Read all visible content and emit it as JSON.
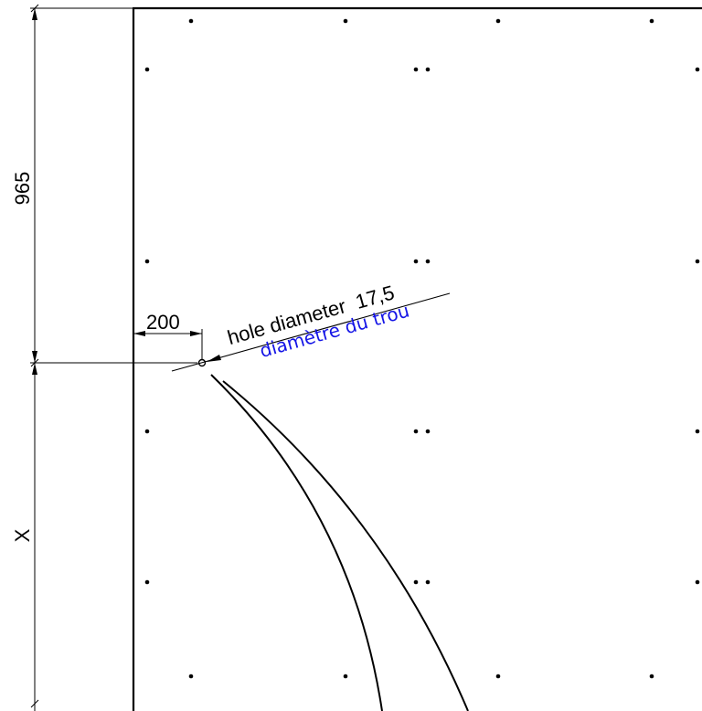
{
  "colors": {
    "line": "#000000",
    "french_note": "#1414e6",
    "background": "#ffffff"
  },
  "dimensions": {
    "vertical_top": "965",
    "vertical_bottom": "X",
    "horizontal_offset": "200"
  },
  "hole_note": {
    "english": "hole diameter  17,5",
    "french": "diamètre du trou"
  }
}
